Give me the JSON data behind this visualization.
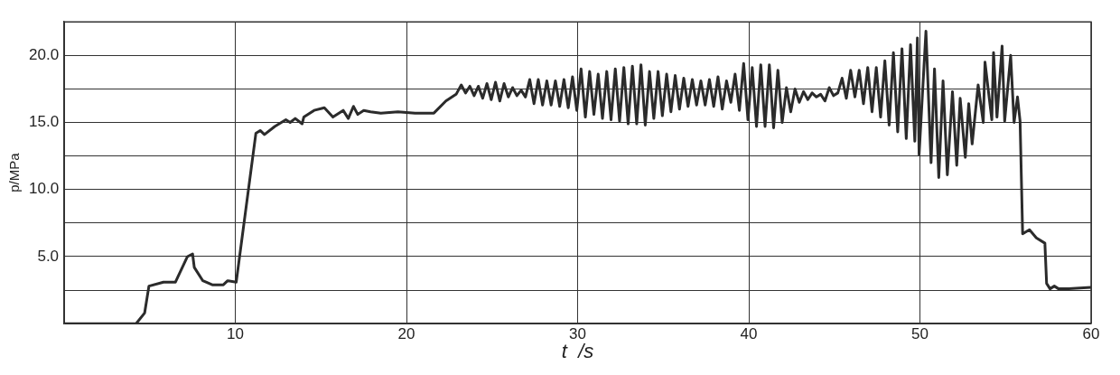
{
  "chart_data": {
    "type": "line",
    "xlabel": "t  /s",
    "ylabel": "p/MPa",
    "xlim": [
      0,
      60
    ],
    "ylim": [
      0,
      22.5
    ],
    "xticks": [
      {
        "value": 0,
        "label": null
      },
      10,
      20,
      30,
      40,
      50,
      60
    ],
    "yticks": [
      {
        "value": 0,
        "label": null
      },
      {
        "value": 2.5,
        "label": null
      },
      {
        "value": 5,
        "label": "5.0"
      },
      {
        "value": 7.5,
        "label": null
      },
      {
        "value": 10,
        "label": "10.0"
      },
      {
        "value": 12.5,
        "label": null
      },
      {
        "value": 15,
        "label": "15.0"
      },
      {
        "value": 17.5,
        "label": null
      },
      {
        "value": 20,
        "label": "20.0"
      },
      {
        "value": 22.5,
        "label": null
      }
    ],
    "grid": true,
    "legend": false,
    "marker": "none",
    "series": [
      {
        "color": "#2b2b2b",
        "x": [
          0,
          4.2,
          4.7,
          4.95,
          5.8,
          6.5,
          7.2,
          7.5,
          7.6,
          8.1,
          8.65,
          9.3,
          9.55,
          10.05,
          11.2,
          11.45,
          11.7,
          12.3,
          12.95,
          13.2,
          13.5,
          13.9,
          14.0,
          14.6,
          15.2,
          15.7,
          16.3,
          16.6,
          16.9,
          17.15,
          17.5,
          17.9,
          18.5,
          19.5,
          20.5,
          21.6,
          22.3,
          22.9,
          23.2,
          23.45,
          23.7,
          23.95,
          24.2,
          24.45,
          24.7,
          24.95,
          25.2,
          25.45,
          25.7,
          25.95,
          26.2,
          26.45,
          26.7,
          26.95,
          27.2,
          27.45,
          27.7,
          27.95,
          28.2,
          28.45,
          28.7,
          28.95,
          29.2,
          29.45,
          29.7,
          29.95,
          30.2,
          30.45,
          30.7,
          30.95,
          31.2,
          31.45,
          31.7,
          31.95,
          32.2,
          32.45,
          32.7,
          32.95,
          33.2,
          33.45,
          33.7,
          33.95,
          34.2,
          34.45,
          34.7,
          34.95,
          35.2,
          35.45,
          35.7,
          35.95,
          36.2,
          36.45,
          36.7,
          36.95,
          37.2,
          37.45,
          37.7,
          37.95,
          38.2,
          38.45,
          38.7,
          38.95,
          39.2,
          39.45,
          39.7,
          39.95,
          40.2,
          40.45,
          40.7,
          40.95,
          41.2,
          41.45,
          41.7,
          41.95,
          42.2,
          42.45,
          42.7,
          42.95,
          43.2,
          43.45,
          43.7,
          43.95,
          44.2,
          44.45,
          44.7,
          44.95,
          45.2,
          45.45,
          45.7,
          45.95,
          46.2,
          46.45,
          46.7,
          46.95,
          47.2,
          47.45,
          47.7,
          47.95,
          48.2,
          48.45,
          48.7,
          48.95,
          49.2,
          49.45,
          49.7,
          49.85,
          49.95,
          50.35,
          50.65,
          50.85,
          51.1,
          51.35,
          51.6,
          51.9,
          52.15,
          52.35,
          52.65,
          52.85,
          53.05,
          53.4,
          53.7,
          53.8,
          54.2,
          54.3,
          54.5,
          54.8,
          54.95,
          55.3,
          55.5,
          55.7,
          55.85,
          56.0,
          56.4,
          56.8,
          57.3,
          57.4,
          57.6,
          57.85,
          58.1,
          58.7,
          60
        ],
        "values": [
          0,
          0,
          0.8,
          2.8,
          3.1,
          3.1,
          5.0,
          5.2,
          4.2,
          3.2,
          2.9,
          2.9,
          3.2,
          3.1,
          14.2,
          14.4,
          14.1,
          14.7,
          15.2,
          15.0,
          15.3,
          14.9,
          15.4,
          15.9,
          16.1,
          15.4,
          15.9,
          15.3,
          16.2,
          15.6,
          15.9,
          15.8,
          15.7,
          15.8,
          15.7,
          15.7,
          16.6,
          17.1,
          17.8,
          17.2,
          17.7,
          17.0,
          17.7,
          16.8,
          17.9,
          16.7,
          18.0,
          16.6,
          17.9,
          16.9,
          17.6,
          17.0,
          17.4,
          16.9,
          18.2,
          16.4,
          18.2,
          16.3,
          18.1,
          16.3,
          18.1,
          16.2,
          18.2,
          16.1,
          18.4,
          15.9,
          19.0,
          15.4,
          18.8,
          15.6,
          18.6,
          15.3,
          18.8,
          15.2,
          19.0,
          15.1,
          19.1,
          14.9,
          19.2,
          14.9,
          19.3,
          14.8,
          18.8,
          15.3,
          18.8,
          15.5,
          18.6,
          15.8,
          18.5,
          16.0,
          18.3,
          16.2,
          18.2,
          16.3,
          18.1,
          16.3,
          18.2,
          16.2,
          18.4,
          16.0,
          18.1,
          16.5,
          18.6,
          15.9,
          19.4,
          15.2,
          19.1,
          14.7,
          19.3,
          14.7,
          19.3,
          14.6,
          18.9,
          15.0,
          17.6,
          15.8,
          17.5,
          16.5,
          17.3,
          16.7,
          17.2,
          16.9,
          17.1,
          16.6,
          17.6,
          17.0,
          17.2,
          18.3,
          16.8,
          18.9,
          16.9,
          18.9,
          16.4,
          19.1,
          15.8,
          19.1,
          15.4,
          19.6,
          14.8,
          20.2,
          14.3,
          20.5,
          13.8,
          20.8,
          13.6,
          21.3,
          12.6,
          21.8,
          12.0,
          19.0,
          10.9,
          18.1,
          11.1,
          17.3,
          11.8,
          16.8,
          12.4,
          16.4,
          13.4,
          17.8,
          15.0,
          19.5,
          15.2,
          20.2,
          15.4,
          20.7,
          15.1,
          20.0,
          15.0,
          16.9,
          15.1,
          6.7,
          7.0,
          6.4,
          6.0,
          3.0,
          2.6,
          2.8,
          2.6,
          2.6,
          2.7
        ]
      }
    ]
  }
}
